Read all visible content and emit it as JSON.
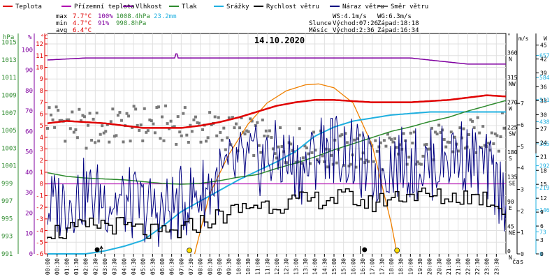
{
  "chart_data": {
    "type": "line",
    "title": "14.10.2020",
    "legend": [
      {
        "name": "Teplota",
        "color": "#e00000"
      },
      {
        "name": "Přízemní teplota",
        "color": "#b000b0"
      },
      {
        "name": "Vlhkost",
        "color": "#8000a0"
      },
      {
        "name": "Tlak",
        "color": "#2e8b2e"
      },
      {
        "name": "Srážky",
        "color": "#20b0e0"
      },
      {
        "name": "Rychlost větru",
        "color": "#000000"
      },
      {
        "name": "Náraz větru",
        "color": "#000080"
      },
      {
        "name": "Směr větru",
        "color": "#606060"
      }
    ],
    "stats": {
      "labels": [
        "max",
        "min",
        "avg"
      ],
      "max": {
        "temp": "7.7°C",
        "hum": "100%",
        "press": "1008.4hPa",
        "rain": "23.2mm"
      },
      "min": {
        "temp": "4.7°C",
        "hum": "91%",
        "press": "998.8hPa"
      },
      "avg": {
        "temp": "6.4°C"
      }
    },
    "info": {
      "ws": "WS:4.1m/s",
      "wg": "WG:6.3m/s",
      "sun_label": "Slunce",
      "sunrise": "Východ:07:26",
      "sunset": "Západ:18:18",
      "moon_label": "Měsíc",
      "moonrise": "Východ:2:36",
      "moonset": "Západ:16:34"
    },
    "axes": {
      "hpa": {
        "label": "hPa",
        "ticks": [
          991,
          993,
          995,
          997,
          999,
          1001,
          1003,
          1005,
          1007,
          1009,
          1011,
          1013,
          1015
        ],
        "range": [
          991,
          1016
        ],
        "color": "#2e8b2e"
      },
      "humidity": {
        "label": "%",
        "ticks": [
          0,
          10,
          20,
          30,
          40,
          50,
          60,
          70,
          80,
          90,
          100
        ],
        "range": [
          0,
          108
        ],
        "color": "#8000a0"
      },
      "temperature": {
        "label": "°C",
        "ticks": [
          -6,
          -5,
          -4,
          -3,
          -2,
          -1,
          0,
          1,
          2,
          3,
          4,
          5,
          6,
          7,
          8,
          9,
          10,
          11,
          12
        ],
        "range": [
          -6,
          12.9
        ],
        "color": "#e00000"
      },
      "wind_dir": {
        "label": "°",
        "ticks": [
          0,
          45,
          90,
          135,
          180,
          225,
          270,
          315,
          360
        ],
        "names": [
          "N",
          "NE",
          "E",
          "SE",
          "S",
          "SW",
          "W",
          "NW",
          "N"
        ],
        "range": [
          0,
          400
        ]
      },
      "wind_speed": {
        "label": "m/s",
        "ticks": [
          0,
          1,
          2,
          3,
          4,
          5,
          6,
          7
        ],
        "range": [
          0,
          10.25
        ]
      },
      "gust": {
        "label": "W",
        "ticks": [
          0,
          3,
          6,
          9,
          12,
          15,
          18,
          21,
          24,
          27,
          30,
          33,
          36,
          39,
          42,
          45
        ],
        "range": [
          0,
          47.5
        ]
      },
      "solar": {
        "ticks": [
          0,
          73,
          146,
          219,
          292,
          365,
          438,
          511,
          584,
          657
        ],
        "range": [
          0,
          730
        ],
        "color": "#20b0e0"
      },
      "time": {
        "label": "čas",
        "ticks": [
          "00:00",
          "00:30",
          "01:00",
          "01:30",
          "02:00",
          "02:30",
          "03:00",
          "03:30",
          "04:00",
          "04:30",
          "05:00",
          "05:30",
          "06:00",
          "06:30",
          "07:00",
          "07:30",
          "08:00",
          "08:30",
          "09:00",
          "09:30",
          "10:00",
          "10:30",
          "11:00",
          "11:30",
          "12:00",
          "12:30",
          "13:00",
          "13:30",
          "14:00",
          "14:30",
          "15:00",
          "15:30",
          "16:00",
          "16:30",
          "17:00",
          "17:30",
          "18:00",
          "18:30",
          "19:00",
          "19:30",
          "20:00",
          "20:30",
          "21:00",
          "21:30",
          "22:00",
          "22:30",
          "23:00",
          "23:30"
        ]
      }
    },
    "series": {
      "temperature": {
        "x": [
          0,
          1,
          2,
          3,
          4,
          5,
          6,
          7,
          8,
          9,
          10,
          11,
          12,
          13,
          14,
          15,
          16,
          17,
          18,
          19,
          20,
          21,
          22,
          23,
          24
        ],
        "y": [
          5.2,
          5.4,
          5.3,
          5.2,
          5.0,
          4.8,
          4.8,
          4.8,
          5.0,
          5.3,
          5.7,
          6.2,
          6.7,
          7.0,
          7.2,
          7.2,
          7.1,
          7.0,
          7.0,
          7.0,
          7.1,
          7.2,
          7.4,
          7.6,
          7.5
        ]
      },
      "humidity": {
        "x": [
          0,
          1,
          2,
          3,
          4,
          5,
          6,
          6.7,
          6.75,
          6.8,
          7,
          8,
          9,
          10,
          11,
          12,
          13,
          14,
          15,
          16,
          17,
          18,
          19,
          20,
          21,
          22,
          23,
          24
        ],
        "y": [
          95,
          95.5,
          96,
          96,
          96,
          96,
          96,
          96,
          101,
          96,
          96,
          96,
          96,
          96,
          96,
          96,
          96,
          96,
          96,
          96,
          96,
          96,
          96,
          95,
          94,
          93,
          93,
          93
        ]
      },
      "ground_temperature": {
        "x": [
          0,
          24
        ],
        "y": [
          0,
          0
        ]
      },
      "pressure": {
        "x": [
          0,
          1,
          2,
          3,
          4,
          5,
          6,
          7,
          8,
          9,
          10,
          11,
          12,
          13,
          14,
          15,
          16,
          17,
          18,
          19,
          20,
          21,
          22,
          23,
          24
        ],
        "y": [
          1000.2,
          999.8,
          999.6,
          999.5,
          999.4,
          999.2,
          999.0,
          998.9,
          999.0,
          999.3,
          999.7,
          1000.0,
          1000.7,
          1001.3,
          1002.0,
          1002.8,
          1003.5,
          1004.2,
          1004.9,
          1005.4,
          1006.0,
          1006.5,
          1007.2,
          1007.8,
          1008.4
        ]
      },
      "solar_radiation": {
        "x": [
          0,
          2,
          3,
          4,
          5,
          6,
          7,
          8,
          9,
          10,
          11,
          12,
          13,
          14,
          15,
          16,
          17,
          18,
          19,
          20,
          21,
          22,
          23,
          24
        ],
        "y": [
          0,
          0,
          10,
          25,
          45,
          90,
          140,
          175,
          210,
          245,
          275,
          305,
          340,
          390,
          420,
          440,
          450,
          460,
          465,
          470,
          470,
          470,
          470,
          470
        ]
      },
      "solar_clear_sky": {
        "x": [
          7.7,
          8.5,
          9.5,
          10.5,
          11.5,
          12.5,
          13.5,
          14.2,
          15,
          16,
          17,
          18,
          18.3
        ],
        "y": [
          0,
          200,
          330,
          430,
          500,
          540,
          560,
          563,
          550,
          500,
          360,
          100,
          0
        ]
      },
      "wind_speed": {
        "x": [
          0,
          1,
          2,
          3,
          4,
          5,
          6,
          7,
          8,
          9,
          10,
          11,
          12,
          13,
          14,
          15,
          16,
          17,
          18,
          19,
          20,
          21,
          22,
          23,
          24
        ],
        "y": [
          1.1,
          1.0,
          1.2,
          1.4,
          1.3,
          1.1,
          0.9,
          1.0,
          1.4,
          1.7,
          2.0,
          2.3,
          2.3,
          2.4,
          2.5,
          2.6,
          2.6,
          2.3,
          2.6,
          2.8,
          2.7,
          2.6,
          2.7,
          2.6,
          2.2
        ]
      },
      "wind_gust": {
        "x": [
          0,
          2,
          4,
          6,
          8,
          10,
          12,
          13.5,
          14.5,
          16,
          17,
          18,
          20,
          21.5,
          23,
          24
        ],
        "y": [
          10,
          13,
          11,
          9,
          13,
          19,
          21,
          18,
          24,
          21,
          17,
          20,
          19,
          22,
          18,
          12
        ]
      },
      "wind_dir_range": [
        165,
        265
      ],
      "daily_rain_label": "23.2mm"
    },
    "markers": {
      "moonrise": 2.6,
      "moonset": 16.6,
      "sunrise": 7.43,
      "sunset": 18.3
    }
  }
}
